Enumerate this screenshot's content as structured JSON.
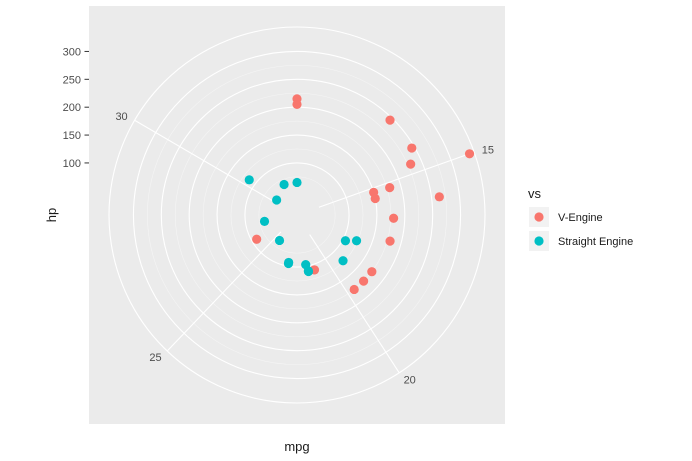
{
  "chart_data": {
    "type": "scatter",
    "coord": "polar",
    "xlabel": "mpg",
    "ylabel": "hp",
    "angle_ticks": [
      "15",
      "20",
      "25",
      "30"
    ],
    "radial_ticks": [
      "100",
      "150",
      "200",
      "250",
      "300"
    ],
    "grid": true,
    "legend": {
      "title": "vs",
      "position": "right",
      "entries": [
        {
          "label": "V-Engine",
          "color": "#F8766D"
        },
        {
          "label": "Straight Engine",
          "color": "#00BFC4"
        }
      ]
    },
    "series": [
      {
        "name": "V-Engine",
        "color": "#F8766D",
        "points": [
          {
            "mpg": 21.0,
            "hp": 110
          },
          {
            "mpg": 21.0,
            "hp": 110
          },
          {
            "mpg": 18.7,
            "hp": 175
          },
          {
            "mpg": 14.3,
            "hp": 245
          },
          {
            "mpg": 16.4,
            "hp": 180
          },
          {
            "mpg": 17.3,
            "hp": 180
          },
          {
            "mpg": 15.2,
            "hp": 180
          },
          {
            "mpg": 10.4,
            "hp": 205
          },
          {
            "mpg": 10.4,
            "hp": 215
          },
          {
            "mpg": 14.7,
            "hp": 230
          },
          {
            "mpg": 15.5,
            "hp": 150
          },
          {
            "mpg": 15.2,
            "hp": 150
          },
          {
            "mpg": 13.3,
            "hp": 245
          },
          {
            "mpg": 19.2,
            "hp": 175
          },
          {
            "mpg": 26.0,
            "hp": 91
          },
          {
            "mpg": 15.8,
            "hp": 264
          },
          {
            "mpg": 19.7,
            "hp": 175
          },
          {
            "mpg": 15.0,
            "hp": 335
          }
        ]
      },
      {
        "name": "Straight Engine",
        "color": "#00BFC4",
        "points": [
          {
            "mpg": 22.8,
            "hp": 93
          },
          {
            "mpg": 21.4,
            "hp": 110
          },
          {
            "mpg": 18.1,
            "hp": 105
          },
          {
            "mpg": 24.4,
            "hp": 62
          },
          {
            "mpg": 22.8,
            "hp": 95
          },
          {
            "mpg": 19.2,
            "hp": 123
          },
          {
            "mpg": 17.8,
            "hp": 123
          },
          {
            "mpg": 32.4,
            "hp": 66
          },
          {
            "mpg": 30.4,
            "hp": 52
          },
          {
            "mpg": 33.9,
            "hp": 65
          },
          {
            "mpg": 21.5,
            "hp": 97
          },
          {
            "mpg": 27.3,
            "hp": 66
          },
          {
            "mpg": 30.4,
            "hp": 113
          },
          {
            "mpg": 21.4,
            "hp": 109
          }
        ]
      }
    ]
  }
}
